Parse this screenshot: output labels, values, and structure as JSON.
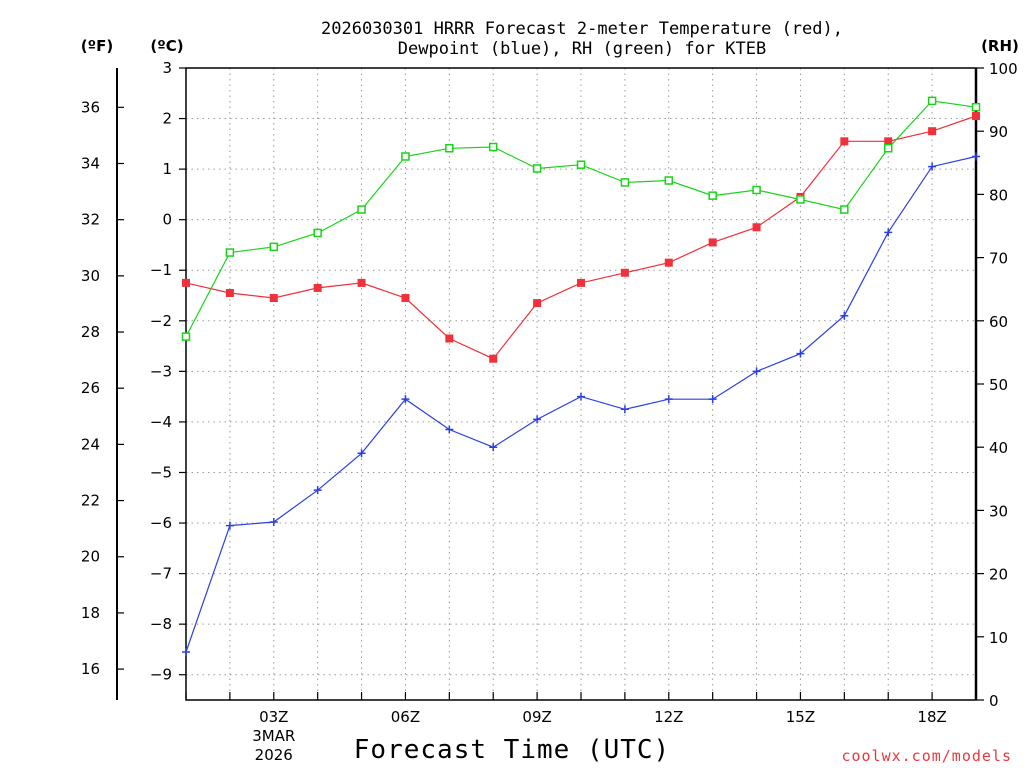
{
  "chart_data": {
    "type": "line",
    "title_lines": [
      "2026030301 HRRR Forecast 2-meter Temperature (red),",
      "Dewpoint (blue), RH (green) for KTEB"
    ],
    "xlabel": "Forecast Time (UTC)",
    "x_hours": [
      1,
      2,
      3,
      4,
      5,
      6,
      7,
      8,
      9,
      10,
      11,
      12,
      13,
      14,
      15,
      16,
      17,
      18,
      19
    ],
    "xlim": [
      1,
      19
    ],
    "x_ticks": [
      {
        "hour": 3,
        "label": "03Z",
        "sub": [
          "3MAR",
          "2026"
        ]
      },
      {
        "hour": 6,
        "label": "06Z",
        "sub": []
      },
      {
        "hour": 9,
        "label": "09Z",
        "sub": []
      },
      {
        "hour": 12,
        "label": "12Z",
        "sub": []
      },
      {
        "hour": 15,
        "label": "15Z",
        "sub": []
      },
      {
        "hour": 18,
        "label": "18Z",
        "sub": []
      }
    ],
    "celsius_axis": {
      "label": "(ºC)",
      "range": [
        -9.5,
        3
      ],
      "ticks": [
        3,
        2,
        1,
        0,
        -1,
        -2,
        -3,
        -4,
        -5,
        -6,
        -7,
        -8,
        -9
      ]
    },
    "fahrenheit_axis": {
      "label": "(ºF)",
      "ticks": [
        36,
        34,
        32,
        30,
        28,
        26,
        24,
        22,
        20,
        18,
        16
      ]
    },
    "rh_axis": {
      "label": "(RH)",
      "range": [
        0,
        100
      ],
      "ticks": [
        100,
        90,
        80,
        70,
        60,
        50,
        40,
        30,
        20,
        10,
        0
      ]
    },
    "series": [
      {
        "name": "Temperature",
        "units": "C",
        "axis": "celsius",
        "color": "#f0303a",
        "marker": "filled-square",
        "values": [
          -1.25,
          -1.45,
          -1.55,
          -1.35,
          -1.25,
          -1.55,
          -2.35,
          -2.75,
          -1.65,
          -1.25,
          -1.05,
          -0.85,
          -0.45,
          -0.15,
          0.45,
          1.55,
          1.55,
          1.75,
          2.05
        ]
      },
      {
        "name": "Dewpoint",
        "units": "C",
        "axis": "celsius",
        "color": "#2b3fe3",
        "marker": "plus",
        "values": [
          -8.55,
          -6.05,
          -5.98,
          -5.35,
          -4.62,
          -3.55,
          -4.15,
          -4.5,
          -3.95,
          -3.5,
          -3.75,
          -3.55,
          -3.55,
          -3.0,
          -2.65,
          -1.9,
          -0.25,
          1.05,
          1.25
        ]
      },
      {
        "name": "RH",
        "units": "%",
        "axis": "rh",
        "color": "#19d419",
        "marker": "open-square",
        "values": [
          57.5,
          70.8,
          71.7,
          73.9,
          77.6,
          86.0,
          87.3,
          87.5,
          84.1,
          84.7,
          81.9,
          82.2,
          79.8,
          80.7,
          79.2,
          77.6,
          87.3,
          94.8,
          93.8
        ]
      }
    ]
  },
  "credit": "coolwx.com/models"
}
